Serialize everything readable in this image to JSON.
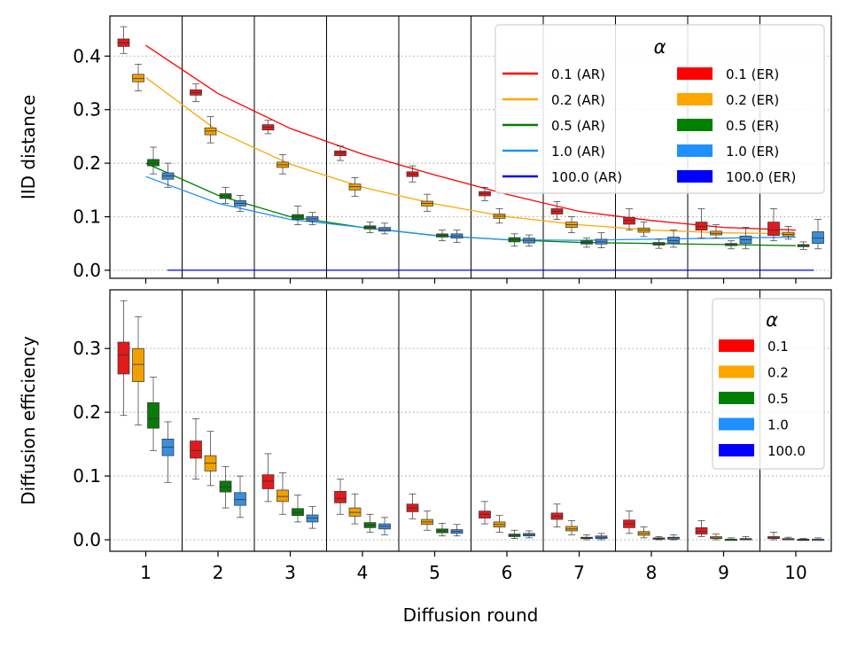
{
  "chart_data": [
    {
      "type": "box",
      "xlabel": "",
      "ylabel": "IID distance",
      "x_ticks": [
        1,
        2,
        3,
        4,
        5,
        6,
        7,
        8,
        9,
        10
      ],
      "ylim": [
        -0.015,
        0.475
      ],
      "y_ticks": [
        0.0,
        0.1,
        0.2,
        0.3,
        0.4
      ],
      "y_tick_labels": [
        "0.0",
        "0.1",
        "0.2",
        "0.3",
        "0.4"
      ],
      "grid": "horizontal dotted",
      "legend": {
        "title": "α",
        "placement": "top-right",
        "columns": 2,
        "entries": [
          {
            "label": "0.1 (AR)",
            "kind": "line",
            "color": "#ff0000"
          },
          {
            "label": "0.2 (AR)",
            "kind": "line",
            "color": "#ffa500"
          },
          {
            "label": "0.5 (AR)",
            "kind": "line",
            "color": "#008000"
          },
          {
            "label": "1.0 (AR)",
            "kind": "line",
            "color": "#1e90ff"
          },
          {
            "label": "100.0 (AR)",
            "kind": "line",
            "color": "#0000ff"
          },
          {
            "label": "0.1 (ER)",
            "kind": "patch",
            "color": "#ff0000"
          },
          {
            "label": "0.2 (ER)",
            "kind": "patch",
            "color": "#ffa500"
          },
          {
            "label": "0.5 (ER)",
            "kind": "patch",
            "color": "#008000"
          },
          {
            "label": "1.0 (ER)",
            "kind": "patch",
            "color": "#1e90ff"
          },
          {
            "label": "100.0 (ER)",
            "kind": "patch",
            "color": "#0000ff"
          }
        ]
      },
      "lines": [
        {
          "color": "#ff0000",
          "x": [
            1,
            2,
            3,
            4,
            5,
            6,
            7,
            8,
            9,
            10
          ],
          "y": [
            0.42,
            0.33,
            0.265,
            0.217,
            0.178,
            0.142,
            0.11,
            0.093,
            0.08,
            0.075
          ]
        },
        {
          "color": "#ffa500",
          "x": [
            1,
            2,
            3,
            4,
            5,
            6,
            7,
            8,
            9,
            10
          ],
          "y": [
            0.36,
            0.26,
            0.198,
            0.155,
            0.124,
            0.1,
            0.085,
            0.075,
            0.07,
            0.068
          ]
        },
        {
          "color": "#008000",
          "x": [
            1,
            2,
            3,
            4,
            5,
            6,
            7,
            8,
            9,
            10
          ],
          "y": [
            0.2,
            0.14,
            0.1,
            0.08,
            0.065,
            0.057,
            0.052,
            0.05,
            0.048,
            0.046
          ]
        },
        {
          "color": "#1e90ff",
          "x": [
            1,
            2,
            3,
            4,
            5,
            6,
            7,
            8,
            9,
            10
          ],
          "y": [
            0.175,
            0.125,
            0.095,
            0.08,
            0.065,
            0.057,
            0.056,
            0.058,
            0.06,
            0.062
          ]
        },
        {
          "color": "#0000ff",
          "x": [
            1.3,
            10.25
          ],
          "y": [
            0.0,
            0.0
          ]
        }
      ],
      "boxes": [
        {
          "alpha": "0.1",
          "color": "#e31a1c",
          "stats": [
            [
              0.405,
              0.418,
              0.425,
              0.432,
              0.455
            ],
            [
              0.315,
              0.327,
              0.332,
              0.337,
              0.348
            ],
            [
              0.255,
              0.262,
              0.267,
              0.272,
              0.28
            ],
            [
              0.205,
              0.214,
              0.219,
              0.223,
              0.232
            ],
            [
              0.165,
              0.175,
              0.18,
              0.184,
              0.195
            ],
            [
              0.13,
              0.139,
              0.143,
              0.147,
              0.155
            ],
            [
              0.095,
              0.105,
              0.11,
              0.115,
              0.128
            ],
            [
              0.075,
              0.086,
              0.093,
              0.099,
              0.115
            ],
            [
              0.06,
              0.075,
              0.082,
              0.09,
              0.115
            ],
            [
              0.055,
              0.065,
              0.075,
              0.09,
              0.115
            ]
          ]
        },
        {
          "alpha": "0.2",
          "color": "#f0a000",
          "stats": [
            [
              0.335,
              0.352,
              0.358,
              0.366,
              0.385
            ],
            [
              0.238,
              0.253,
              0.26,
              0.266,
              0.287
            ],
            [
              0.18,
              0.192,
              0.197,
              0.202,
              0.216
            ],
            [
              0.138,
              0.15,
              0.156,
              0.161,
              0.173
            ],
            [
              0.11,
              0.12,
              0.125,
              0.129,
              0.142
            ],
            [
              0.088,
              0.097,
              0.101,
              0.105,
              0.115
            ],
            [
              0.07,
              0.08,
              0.085,
              0.09,
              0.1
            ],
            [
              0.063,
              0.071,
              0.075,
              0.079,
              0.09
            ],
            [
              0.06,
              0.066,
              0.069,
              0.073,
              0.085
            ],
            [
              0.058,
              0.064,
              0.067,
              0.071,
              0.082
            ]
          ]
        },
        {
          "alpha": "0.5",
          "color": "#0b7a0b",
          "stats": [
            [
              0.18,
              0.195,
              0.2,
              0.207,
              0.23
            ],
            [
              0.125,
              0.134,
              0.139,
              0.143,
              0.155
            ],
            [
              0.085,
              0.095,
              0.1,
              0.104,
              0.12
            ],
            [
              0.07,
              0.077,
              0.08,
              0.083,
              0.09
            ],
            [
              0.055,
              0.062,
              0.065,
              0.068,
              0.075
            ],
            [
              0.045,
              0.053,
              0.057,
              0.061,
              0.068
            ],
            [
              0.043,
              0.049,
              0.052,
              0.055,
              0.06
            ],
            [
              0.041,
              0.047,
              0.049,
              0.052,
              0.058
            ],
            [
              0.04,
              0.046,
              0.048,
              0.05,
              0.055
            ],
            [
              0.039,
              0.044,
              0.046,
              0.048,
              0.053
            ]
          ]
        },
        {
          "alpha": "1.0",
          "color": "#3a8fdc",
          "stats": [
            [
              0.155,
              0.17,
              0.176,
              0.182,
              0.2
            ],
            [
              0.11,
              0.12,
              0.125,
              0.13,
              0.14
            ],
            [
              0.085,
              0.092,
              0.096,
              0.1,
              0.108
            ],
            [
              0.068,
              0.073,
              0.076,
              0.08,
              0.088
            ],
            [
              0.052,
              0.06,
              0.064,
              0.068,
              0.075
            ],
            [
              0.045,
              0.051,
              0.056,
              0.06,
              0.066
            ],
            [
              0.042,
              0.049,
              0.053,
              0.058,
              0.07
            ],
            [
              0.043,
              0.05,
              0.055,
              0.062,
              0.075
            ],
            [
              0.04,
              0.05,
              0.057,
              0.064,
              0.08
            ],
            [
              0.04,
              0.05,
              0.06,
              0.072,
              0.095
            ]
          ]
        }
      ]
    },
    {
      "type": "box",
      "xlabel": "Diffusion round",
      "ylabel": "Diffusion efficiency",
      "x_ticks": [
        1,
        2,
        3,
        4,
        5,
        6,
        7,
        8,
        9,
        10
      ],
      "x_tick_labels": [
        "1",
        "2",
        "3",
        "4",
        "5",
        "6",
        "7",
        "8",
        "9",
        "10"
      ],
      "ylim": [
        -0.018,
        0.392
      ],
      "y_ticks": [
        0.0,
        0.1,
        0.2,
        0.3
      ],
      "y_tick_labels": [
        "0.0",
        "0.1",
        "0.2",
        "0.3"
      ],
      "grid": "horizontal dotted",
      "legend": {
        "title": "α",
        "placement": "top-right",
        "columns": 1,
        "entries": [
          {
            "label": "0.1",
            "kind": "patch",
            "color": "#ff0000"
          },
          {
            "label": "0.2",
            "kind": "patch",
            "color": "#ffa500"
          },
          {
            "label": "0.5",
            "kind": "patch",
            "color": "#008000"
          },
          {
            "label": "1.0",
            "kind": "patch",
            "color": "#1e90ff"
          },
          {
            "label": "100.0",
            "kind": "patch",
            "color": "#0000ff"
          }
        ]
      },
      "lines": [],
      "boxes": [
        {
          "alpha": "0.1",
          "color": "#e31a1c",
          "stats": [
            [
              0.195,
              0.26,
              0.29,
              0.31,
              0.375
            ],
            [
              0.095,
              0.128,
              0.14,
              0.155,
              0.19
            ],
            [
              0.06,
              0.08,
              0.092,
              0.102,
              0.135
            ],
            [
              0.04,
              0.058,
              0.065,
              0.076,
              0.095
            ],
            [
              0.033,
              0.044,
              0.05,
              0.056,
              0.072
            ],
            [
              0.025,
              0.034,
              0.04,
              0.045,
              0.06
            ],
            [
              0.02,
              0.032,
              0.037,
              0.042,
              0.056
            ],
            [
              0.01,
              0.019,
              0.025,
              0.031,
              0.045
            ],
            [
              0.005,
              0.009,
              0.013,
              0.019,
              0.03
            ],
            [
              0.0,
              0.002,
              0.003,
              0.005,
              0.012
            ]
          ]
        },
        {
          "alpha": "0.2",
          "color": "#f0a000",
          "stats": [
            [
              0.18,
              0.248,
              0.275,
              0.3,
              0.35
            ],
            [
              0.085,
              0.108,
              0.12,
              0.132,
              0.17
            ],
            [
              0.04,
              0.06,
              0.068,
              0.078,
              0.105
            ],
            [
              0.025,
              0.037,
              0.043,
              0.05,
              0.072
            ],
            [
              0.015,
              0.024,
              0.028,
              0.032,
              0.045
            ],
            [
              0.012,
              0.02,
              0.024,
              0.028,
              0.038
            ],
            [
              0.008,
              0.014,
              0.017,
              0.021,
              0.03
            ],
            [
              0.003,
              0.007,
              0.01,
              0.013,
              0.02
            ],
            [
              0.0,
              0.002,
              0.003,
              0.005,
              0.009
            ],
            [
              0.0,
              0.001,
              0.001,
              0.002,
              0.004
            ]
          ]
        },
        {
          "alpha": "0.5",
          "color": "#0b7a0b",
          "stats": [
            [
              0.14,
              0.175,
              0.19,
              0.215,
              0.255
            ],
            [
              0.05,
              0.075,
              0.083,
              0.092,
              0.115
            ],
            [
              0.028,
              0.038,
              0.043,
              0.049,
              0.07
            ],
            [
              0.012,
              0.019,
              0.023,
              0.027,
              0.04
            ],
            [
              0.006,
              0.011,
              0.014,
              0.017,
              0.026
            ],
            [
              0.002,
              0.005,
              0.007,
              0.009,
              0.015
            ],
            [
              0.0,
              0.002,
              0.003,
              0.004,
              0.008
            ],
            [
              0.0,
              0.001,
              0.002,
              0.003,
              0.005
            ],
            [
              0.0,
              0.0,
              0.001,
              0.001,
              0.003
            ],
            [
              0.0,
              0.0,
              0.0,
              0.001,
              0.002
            ]
          ]
        },
        {
          "alpha": "1.0",
          "color": "#3a8fdc",
          "stats": [
            [
              0.09,
              0.132,
              0.145,
              0.158,
              0.185
            ],
            [
              0.035,
              0.054,
              0.063,
              0.074,
              0.1
            ],
            [
              0.018,
              0.028,
              0.034,
              0.039,
              0.052
            ],
            [
              0.008,
              0.017,
              0.021,
              0.025,
              0.035
            ],
            [
              0.006,
              0.01,
              0.013,
              0.016,
              0.024
            ],
            [
              0.003,
              0.006,
              0.008,
              0.01,
              0.014
            ],
            [
              0.0,
              0.002,
              0.004,
              0.006,
              0.01
            ],
            [
              0.0,
              0.001,
              0.003,
              0.004,
              0.008
            ],
            [
              0.0,
              0.001,
              0.001,
              0.002,
              0.005
            ],
            [
              0.0,
              0.0,
              0.001,
              0.001,
              0.003
            ]
          ]
        }
      ]
    }
  ]
}
